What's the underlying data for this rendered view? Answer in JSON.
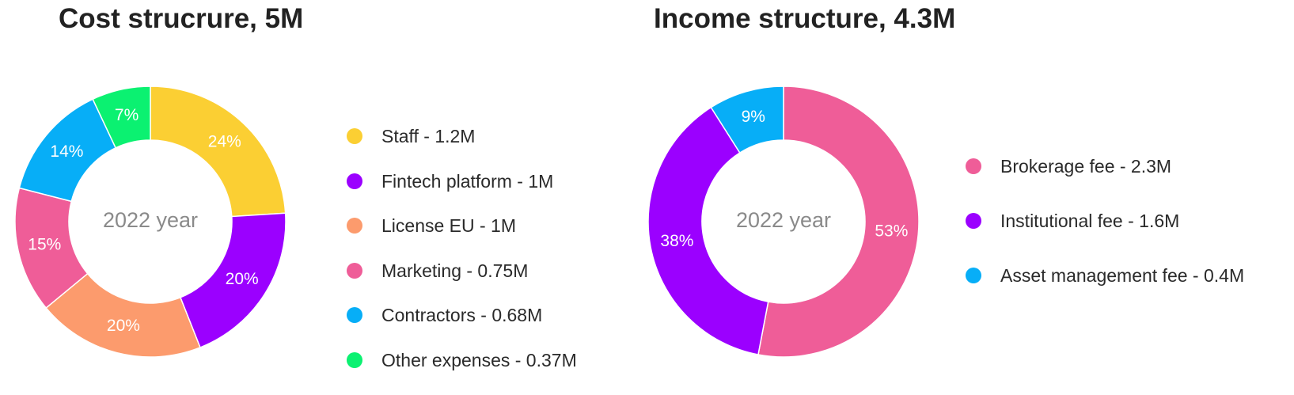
{
  "chart_data": [
    {
      "type": "pie",
      "title": "Cost strucrure, 5M",
      "center_label": "2022 year",
      "colors": {
        "Staff": "#FBCF33",
        "Fintech platform": "#9B00FF",
        "License EU": "#FC9B6D",
        "Marketing": "#EF5D98",
        "Contractors": "#07AEF7",
        "Other expenses": "#0BF171"
      },
      "slices": [
        {
          "label": "Staff",
          "value": 24,
          "pct_label": "24%",
          "legend": "Staff - 1.2M",
          "color": "#FBCF33"
        },
        {
          "label": "Fintech platform",
          "value": 20,
          "pct_label": "20%",
          "legend": "Fintech platform - 1M",
          "color": "#9B00FF"
        },
        {
          "label": "License EU",
          "value": 20,
          "pct_label": "20%",
          "legend": "License EU - 1M",
          "color": "#FC9B6D"
        },
        {
          "label": "Marketing",
          "value": 15,
          "pct_label": "15%",
          "legend": "Marketing - 0.75M",
          "color": "#EF5D98"
        },
        {
          "label": "Contractors",
          "value": 14,
          "pct_label": "14%",
          "legend": "Contractors - 0.68M",
          "color": "#07AEF7"
        },
        {
          "label": "Other expenses",
          "value": 7,
          "pct_label": "7%",
          "legend": "Other expenses - 0.37M",
          "color": "#0BF171"
        }
      ],
      "legend_position": "right",
      "donut": true
    },
    {
      "type": "pie",
      "title": "Income structure, 4.3M",
      "center_label": "2022 year",
      "colors": {
        "Brokerage fee": "#EF5D98",
        "Institutional fee": "#9B00FF",
        "Asset management fee": "#07AEF7"
      },
      "slices": [
        {
          "label": "Brokerage fee",
          "value": 53,
          "pct_label": "53%",
          "legend": "Brokerage fee - 2.3M",
          "color": "#EF5D98"
        },
        {
          "label": "Institutional fee",
          "value": 38,
          "pct_label": "38%",
          "legend": "Institutional fee - 1.6M",
          "color": "#9B00FF"
        },
        {
          "label": "Asset management fee",
          "value": 9,
          "pct_label": "9%",
          "legend": "Asset management fee - 0.4M",
          "color": "#07AEF7"
        }
      ],
      "legend_position": "right",
      "donut": true
    }
  ]
}
